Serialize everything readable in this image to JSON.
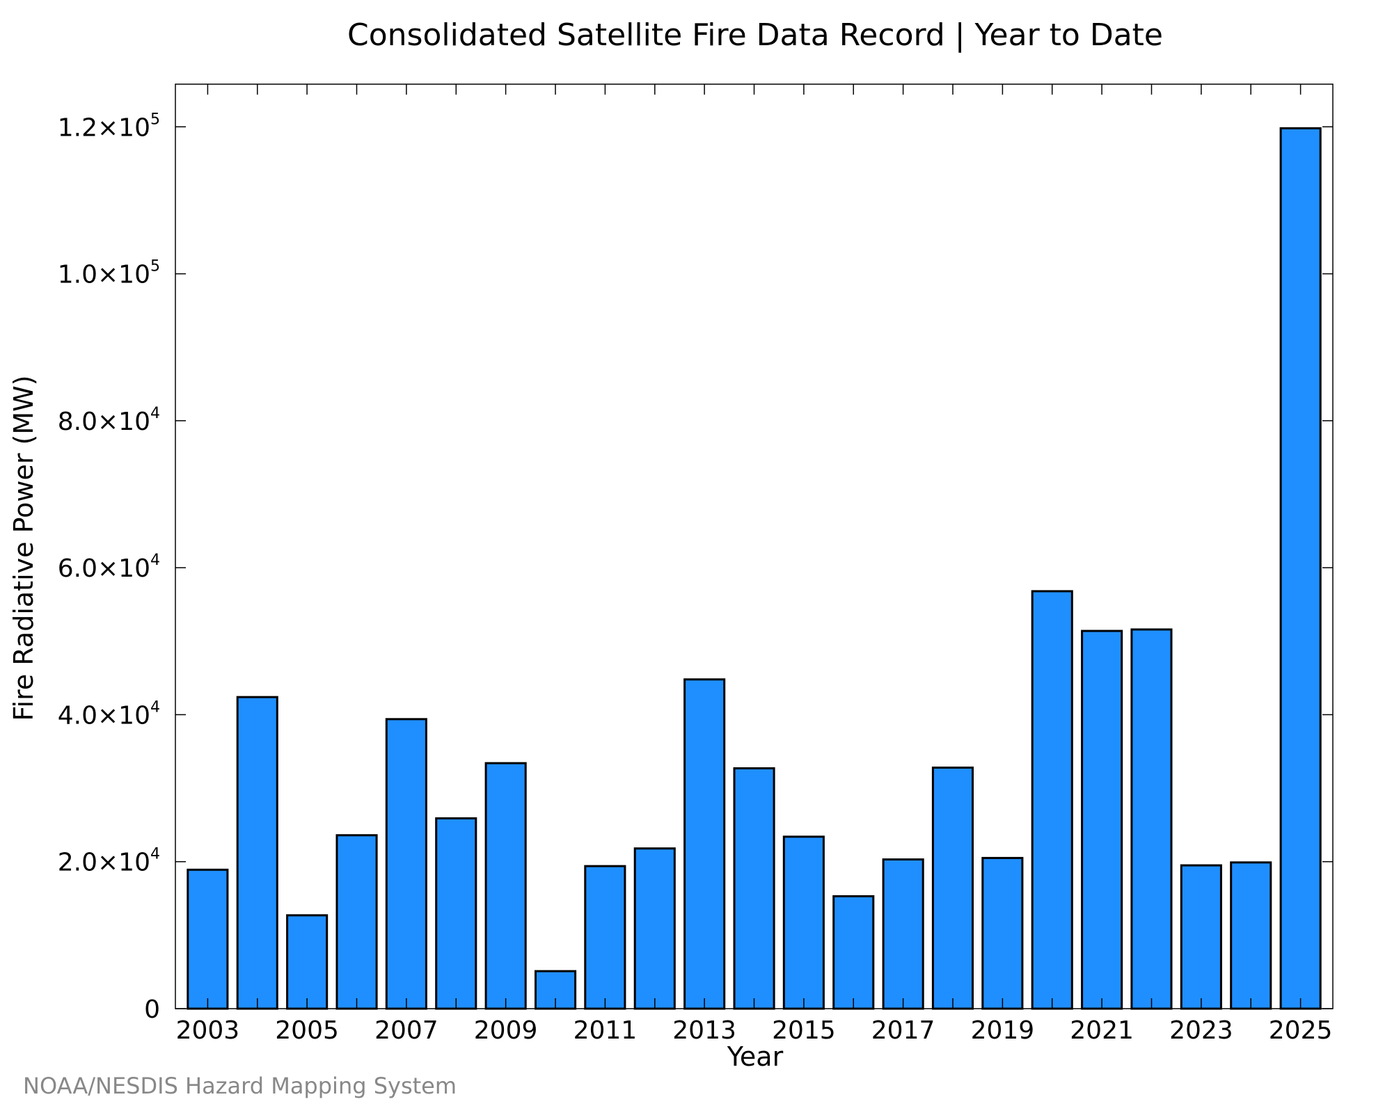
{
  "chart_data": {
    "type": "bar",
    "title": "Consolidated Satellite Fire Data Record | Year to Date",
    "xlabel": "Year",
    "ylabel": "Fire Radiative Power (MW)",
    "categories": [
      "2003",
      "2004",
      "2005",
      "2006",
      "2007",
      "2008",
      "2009",
      "2010",
      "2011",
      "2012",
      "2013",
      "2014",
      "2015",
      "2016",
      "2017",
      "2018",
      "2019",
      "2020",
      "2021",
      "2022",
      "2023",
      "2024",
      "2025"
    ],
    "values": [
      18900,
      42400,
      12700,
      23600,
      39400,
      25900,
      33400,
      5100,
      19400,
      21800,
      44800,
      32700,
      23400,
      15300,
      20300,
      32800,
      20500,
      56800,
      51400,
      51600,
      19500,
      19900,
      119800
    ],
    "x_tick_labels": [
      "2003",
      "2005",
      "2007",
      "2009",
      "2011",
      "2013",
      "2015",
      "2017",
      "2019",
      "2021",
      "2023",
      "2025"
    ],
    "y_ticks": [
      {
        "value": 0,
        "mantissa": "0",
        "exponent": ""
      },
      {
        "value": 20000,
        "mantissa": "2.0×10",
        "exponent": "4"
      },
      {
        "value": 40000,
        "mantissa": "4.0×10",
        "exponent": "4"
      },
      {
        "value": 60000,
        "mantissa": "6.0×10",
        "exponent": "4"
      },
      {
        "value": 80000,
        "mantissa": "8.0×10",
        "exponent": "4"
      },
      {
        "value": 100000,
        "mantissa": "1.0×10",
        "exponent": "5"
      },
      {
        "value": 120000,
        "mantissa": "1.2×10",
        "exponent": "5"
      }
    ],
    "ylim": [
      0,
      125800
    ],
    "grid": false,
    "colors": {
      "bar_fill": "#1f8fff",
      "bar_stroke": "#000000",
      "axes": "#000000",
      "credit": "#888888"
    }
  },
  "credit": "NOAA/NESDIS Hazard Mapping System"
}
